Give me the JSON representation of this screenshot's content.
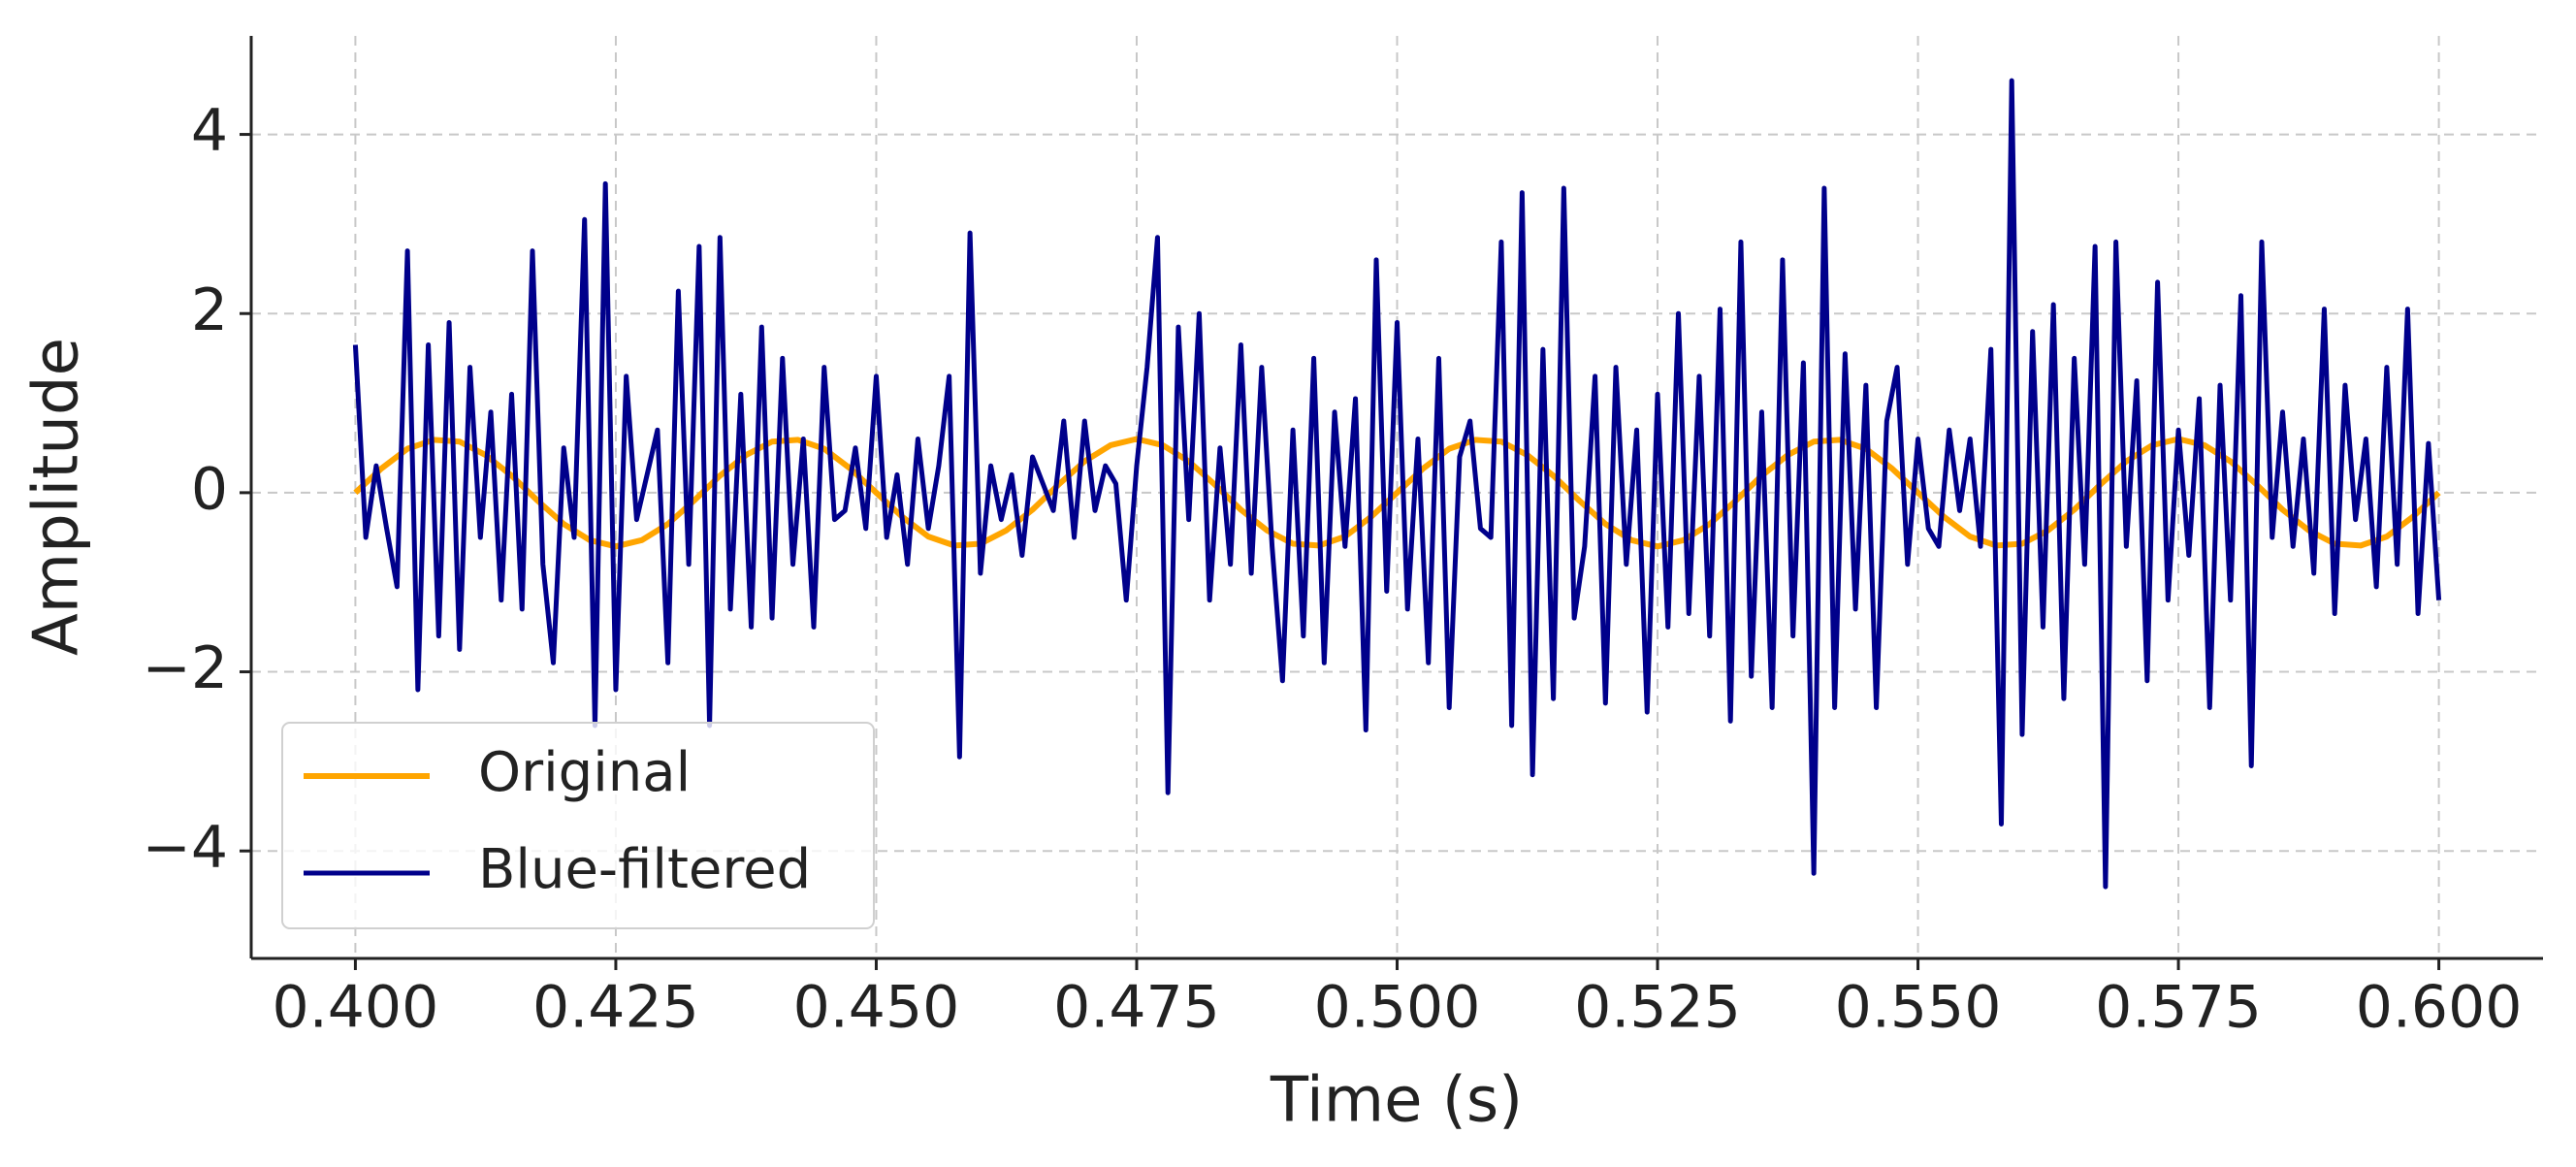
{
  "chart_data": {
    "type": "line",
    "xlabel": "Time (s)",
    "ylabel": "Amplitude",
    "xlim": [
      0.39,
      0.61
    ],
    "ylim": [
      -5.2,
      5.1
    ],
    "xticks": [
      {
        "value": 0.4,
        "label": "0.400"
      },
      {
        "value": 0.425,
        "label": "0.425"
      },
      {
        "value": 0.45,
        "label": "0.450"
      },
      {
        "value": 0.475,
        "label": "0.475"
      },
      {
        "value": 0.5,
        "label": "0.500"
      },
      {
        "value": 0.525,
        "label": "0.525"
      },
      {
        "value": 0.55,
        "label": "0.550"
      },
      {
        "value": 0.575,
        "label": "0.575"
      },
      {
        "value": 0.6,
        "label": "0.600"
      }
    ],
    "yticks": [
      {
        "value": -4,
        "label": "−4"
      },
      {
        "value": -2,
        "label": "−2"
      },
      0,
      2,
      4
    ],
    "grid": true,
    "legend": "lower left",
    "series": [
      {
        "name": "Original",
        "color": "#ffa500",
        "x": [
          0.4,
          0.4025,
          0.405,
          0.4075,
          0.41,
          0.4125,
          0.415,
          0.4175,
          0.42,
          0.4225,
          0.425,
          0.4275,
          0.43,
          0.4325,
          0.435,
          0.4375,
          0.44,
          0.4425,
          0.445,
          0.4475,
          0.45,
          0.4525,
          0.455,
          0.4575,
          0.46,
          0.4625,
          0.465,
          0.4675,
          0.47,
          0.4725,
          0.475,
          0.4775,
          0.48,
          0.4825,
          0.485,
          0.4875,
          0.49,
          0.4925,
          0.495,
          0.4975,
          0.5,
          0.5025,
          0.505,
          0.5075,
          0.51,
          0.5125,
          0.515,
          0.5175,
          0.52,
          0.5225,
          0.525,
          0.5275,
          0.53,
          0.5325,
          0.535,
          0.5375,
          0.54,
          0.5425,
          0.545,
          0.5475,
          0.55,
          0.5525,
          0.555,
          0.5575,
          0.56,
          0.5625,
          0.565,
          0.5675,
          0.57,
          0.5725,
          0.575,
          0.5775,
          0.58,
          0.5825,
          0.585,
          0.5875,
          0.59,
          0.5925,
          0.595,
          0.5975,
          0.6
        ],
        "values": [
          0,
          0.27,
          0.49,
          0.59,
          0.57,
          0.42,
          0.19,
          -0.09,
          -0.35,
          -0.53,
          -0.6,
          -0.53,
          -0.35,
          -0.09,
          0.19,
          0.42,
          0.57,
          0.59,
          0.49,
          0.27,
          0,
          -0.27,
          -0.49,
          -0.59,
          -0.57,
          -0.42,
          -0.19,
          0.09,
          0.35,
          0.53,
          0.6,
          0.53,
          0.35,
          0.09,
          -0.19,
          -0.42,
          -0.57,
          -0.59,
          -0.49,
          -0.27,
          0,
          0.27,
          0.49,
          0.59,
          0.57,
          0.42,
          0.19,
          -0.09,
          -0.35,
          -0.53,
          -0.6,
          -0.53,
          -0.35,
          -0.09,
          0.19,
          0.42,
          0.57,
          0.59,
          0.49,
          0.27,
          0,
          -0.27,
          -0.49,
          -0.59,
          -0.57,
          -0.42,
          -0.19,
          0.09,
          0.35,
          0.53,
          0.6,
          0.53,
          0.35,
          0.09,
          -0.19,
          -0.42,
          -0.57,
          -0.59,
          -0.49,
          -0.27,
          0
        ]
      },
      {
        "name": "Blue-filtered",
        "color": "#00008b",
        "x": [
          0.4,
          0.401,
          0.402,
          0.403,
          0.404,
          0.405,
          0.406,
          0.407,
          0.408,
          0.409,
          0.41,
          0.411,
          0.412,
          0.413,
          0.414,
          0.415,
          0.416,
          0.417,
          0.418,
          0.419,
          0.42,
          0.421,
          0.422,
          0.423,
          0.424,
          0.425,
          0.426,
          0.427,
          0.428,
          0.429,
          0.43,
          0.431,
          0.432,
          0.433,
          0.434,
          0.435,
          0.436,
          0.437,
          0.438,
          0.439,
          0.44,
          0.441,
          0.442,
          0.443,
          0.444,
          0.445,
          0.446,
          0.447,
          0.448,
          0.449,
          0.45,
          0.451,
          0.452,
          0.453,
          0.454,
          0.455,
          0.456,
          0.457,
          0.458,
          0.459,
          0.46,
          0.461,
          0.462,
          0.463,
          0.464,
          0.465,
          0.466,
          0.467,
          0.468,
          0.469,
          0.47,
          0.471,
          0.472,
          0.473,
          0.474,
          0.475,
          0.476,
          0.477,
          0.478,
          0.479,
          0.48,
          0.481,
          0.482,
          0.483,
          0.484,
          0.485,
          0.486,
          0.487,
          0.488,
          0.489,
          0.49,
          0.491,
          0.492,
          0.493,
          0.494,
          0.495,
          0.496,
          0.497,
          0.498,
          0.499,
          0.5,
          0.501,
          0.502,
          0.503,
          0.504,
          0.505,
          0.506,
          0.507,
          0.508,
          0.509,
          0.51,
          0.511,
          0.512,
          0.513,
          0.514,
          0.515,
          0.516,
          0.517,
          0.518,
          0.519,
          0.52,
          0.521,
          0.522,
          0.523,
          0.524,
          0.525,
          0.526,
          0.527,
          0.528,
          0.529,
          0.53,
          0.531,
          0.532,
          0.533,
          0.534,
          0.535,
          0.536,
          0.537,
          0.538,
          0.539,
          0.54,
          0.541,
          0.542,
          0.543,
          0.544,
          0.545,
          0.546,
          0.547,
          0.548,
          0.549,
          0.55,
          0.551,
          0.552,
          0.553,
          0.554,
          0.555,
          0.556,
          0.557,
          0.558,
          0.559,
          0.56,
          0.561,
          0.562,
          0.563,
          0.564,
          0.565,
          0.566,
          0.567,
          0.568,
          0.569,
          0.57,
          0.571,
          0.572,
          0.573,
          0.574,
          0.575,
          0.576,
          0.577,
          0.578,
          0.579,
          0.58,
          0.581,
          0.582,
          0.583,
          0.584,
          0.585,
          0.586,
          0.587,
          0.588,
          0.589,
          0.59,
          0.591,
          0.592,
          0.593,
          0.594,
          0.595,
          0.596,
          0.597,
          0.598,
          0.599,
          0.6
        ],
        "values": [
          1.65,
          -0.5,
          0.3,
          -0.4,
          -1.05,
          2.7,
          -2.2,
          1.65,
          -1.6,
          1.9,
          -1.75,
          1.4,
          -0.5,
          0.9,
          -1.2,
          1.1,
          -1.3,
          2.7,
          -0.8,
          -1.9,
          0.5,
          -0.5,
          3.05,
          -2.6,
          3.45,
          -2.2,
          1.3,
          -0.3,
          0.2,
          0.7,
          -1.9,
          2.25,
          -0.8,
          2.75,
          -2.6,
          2.85,
          -1.3,
          1.1,
          -1.5,
          1.85,
          -1.4,
          1.5,
          -0.8,
          0.6,
          -1.5,
          1.4,
          -0.3,
          -0.2,
          0.5,
          -0.4,
          1.3,
          -0.5,
          0.2,
          -0.8,
          0.6,
          -0.4,
          0.3,
          1.3,
          -2.95,
          2.9,
          -0.9,
          0.3,
          -0.3,
          0.2,
          -0.7,
          0.4,
          0.1,
          -0.2,
          0.8,
          -0.5,
          0.8,
          -0.2,
          0.3,
          0.1,
          -1.2,
          0.3,
          1.4,
          2.85,
          -3.35,
          1.85,
          -0.3,
          2.0,
          -1.2,
          0.5,
          -0.8,
          1.65,
          -0.9,
          1.4,
          -0.6,
          -2.1,
          0.7,
          -1.6,
          1.5,
          -1.9,
          0.9,
          -0.6,
          1.05,
          -2.65,
          2.6,
          -1.1,
          1.9,
          -1.3,
          0.6,
          -1.9,
          1.5,
          -2.4,
          0.4,
          0.8,
          -0.4,
          -0.5,
          2.8,
          -2.6,
          3.35,
          -3.15,
          1.6,
          -2.3,
          3.4,
          -1.4,
          -0.6,
          1.3,
          -2.35,
          1.4,
          -0.8,
          0.7,
          -2.45,
          1.1,
          -1.5,
          2.0,
          -1.35,
          1.3,
          -1.6,
          2.05,
          -2.55,
          2.8,
          -2.05,
          0.9,
          -2.4,
          2.6,
          -1.6,
          1.45,
          -4.25,
          3.4,
          -2.4,
          1.55,
          -1.3,
          1.2,
          -2.4,
          0.8,
          1.4,
          -0.8,
          0.6,
          -0.4,
          -0.6,
          0.7,
          -0.2,
          0.6,
          -0.6,
          1.6,
          -3.7,
          4.6,
          -2.7,
          1.8,
          -1.5,
          2.1,
          -2.3,
          1.5,
          -0.8,
          2.75,
          -4.4,
          2.8,
          -0.6,
          1.25,
          -2.1,
          2.35,
          -1.2,
          0.7,
          -0.7,
          1.05,
          -2.4,
          1.2,
          -1.2,
          2.2,
          -3.05,
          2.8,
          -0.5,
          0.9,
          -0.6,
          0.6,
          -0.9,
          2.05,
          -1.35,
          1.2,
          -0.3,
          0.6,
          -1.05,
          1.4,
          -0.8,
          2.05,
          -1.35,
          0.55,
          -1.2
        ]
      }
    ]
  }
}
